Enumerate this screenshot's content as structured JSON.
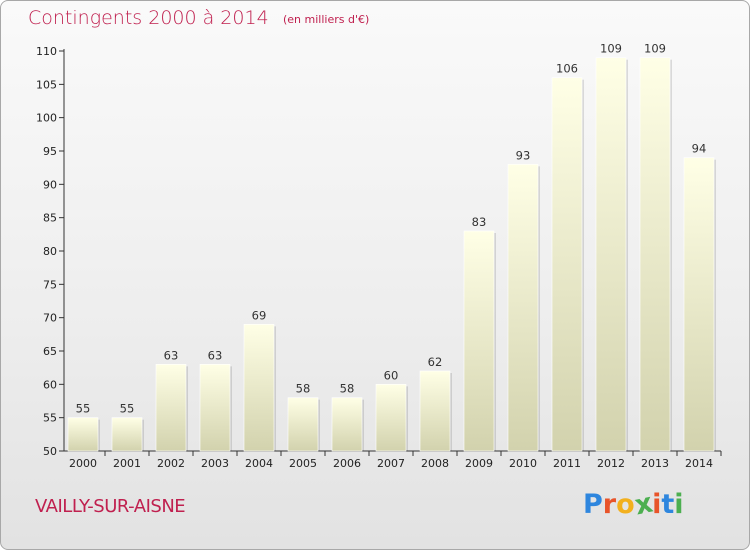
{
  "header": {
    "title": "Contingents 2000 à 2014",
    "unit": "(en milliers d'€)"
  },
  "footer": {
    "commune": "VAILLY-SUR-AISNE",
    "logo_letters": [
      "P",
      "r",
      "o",
      "x",
      "i",
      "t",
      "i"
    ]
  },
  "colors": {
    "accent": "#c0204f",
    "bar_light": "#ffffe6",
    "bar_dark": "#d2d2ad",
    "logo": [
      "#2e86de",
      "#e8542a",
      "#f2b01e",
      "#4caf50",
      "#e8542a",
      "#2e86de",
      "#4caf50"
    ]
  },
  "chart_data": {
    "type": "bar",
    "title": "Contingents 2000 à 2014",
    "subtitle": "(en milliers d'€)",
    "xlabel": "",
    "ylabel": "",
    "categories": [
      "2000",
      "2001",
      "2002",
      "2003",
      "2004",
      "2005",
      "2006",
      "2007",
      "2008",
      "2009",
      "2010",
      "2011",
      "2012",
      "2013",
      "2014"
    ],
    "values": [
      55,
      55,
      63,
      63,
      69,
      58,
      58,
      60,
      62,
      83,
      93,
      106,
      109,
      109,
      94
    ],
    "ylim": [
      50,
      110
    ],
    "yticks": [
      50,
      55,
      60,
      65,
      70,
      75,
      80,
      85,
      90,
      95,
      100,
      105,
      110
    ],
    "grid": false,
    "data_labels": true
  }
}
